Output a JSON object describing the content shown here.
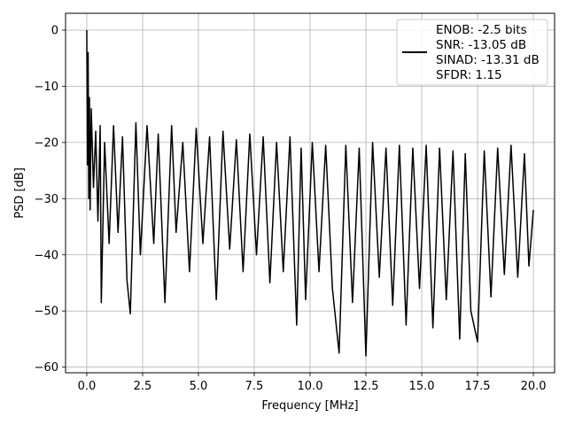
{
  "chart_data": {
    "type": "line",
    "xlabel": "Frequency [MHz]",
    "ylabel": "PSD [dB]",
    "xlim": [
      -0.95,
      20.95
    ],
    "ylim": [
      -61,
      3
    ],
    "xticks": [
      0.0,
      2.5,
      5.0,
      7.5,
      10.0,
      12.5,
      15.0,
      17.5,
      20.0
    ],
    "xtick_labels": [
      "0.0",
      "2.5",
      "5.0",
      "7.5",
      "10.0",
      "12.5",
      "15.0",
      "17.5",
      "20.0"
    ],
    "yticks": [
      0,
      -10,
      -20,
      -30,
      -40,
      -50,
      -60
    ],
    "ytick_labels": [
      "0",
      "−10",
      "−20",
      "−30",
      "−40",
      "−50",
      "−60"
    ],
    "grid": true,
    "line_color": "#000000",
    "legend": {
      "placement": "top-right",
      "entries": [
        "ENOB: -2.5 bits",
        "SNR: -13.05 dB",
        "SINAD: -13.31 dB",
        "SFDR: 1.15"
      ]
    },
    "series": [
      {
        "x": [
          0.0,
          0.03,
          0.06,
          0.09,
          0.12,
          0.15,
          0.2,
          0.3,
          0.4,
          0.5,
          0.6,
          0.65,
          0.8,
          1.0,
          1.2,
          1.4,
          1.6,
          1.8,
          1.95,
          2.2,
          2.4,
          2.7,
          3.0,
          3.2,
          3.5,
          3.8,
          4.0,
          4.3,
          4.6,
          4.9,
          5.2,
          5.5,
          5.8,
          6.1,
          6.4,
          6.7,
          7.0,
          7.3,
          7.6,
          7.9,
          8.2,
          8.5,
          8.8,
          9.1,
          9.4,
          9.6,
          9.8,
          10.1,
          10.4,
          10.7,
          11.0,
          11.3,
          11.6,
          11.9,
          12.2,
          12.5,
          12.8,
          13.1,
          13.4,
          13.7,
          14.0,
          14.3,
          14.6,
          14.9,
          15.2,
          15.5,
          15.8,
          16.1,
          16.4,
          16.7,
          16.95,
          17.2,
          17.5,
          17.8,
          18.1,
          18.4,
          18.7,
          19.0,
          19.3,
          19.6,
          19.8,
          20.0
        ],
        "y": [
          0.0,
          -24.0,
          -4.0,
          -30.0,
          -12.0,
          -32.0,
          -14.0,
          -28.0,
          -18.0,
          -34.0,
          -17.0,
          -48.5,
          -20.0,
          -38.0,
          -17.0,
          -36.0,
          -19.0,
          -44.5,
          -50.5,
          -16.5,
          -40.0,
          -17.0,
          -38.0,
          -18.5,
          -48.5,
          -17.0,
          -36.0,
          -20.0,
          -43.0,
          -17.5,
          -38.0,
          -19.0,
          -48.0,
          -18.0,
          -39.0,
          -19.5,
          -43.0,
          -18.5,
          -40.0,
          -19.0,
          -45.0,
          -20.0,
          -43.0,
          -19.0,
          -52.5,
          -21.0,
          -48.0,
          -20.0,
          -43.0,
          -20.5,
          -46.0,
          -57.5,
          -20.5,
          -48.5,
          -21.0,
          -58.0,
          -20.0,
          -44.0,
          -21.0,
          -49.0,
          -20.5,
          -52.5,
          -21.0,
          -46.0,
          -20.5,
          -53.0,
          -21.0,
          -48.0,
          -21.5,
          -55.0,
          -22.0,
          -50.0,
          -55.5,
          -21.5,
          -47.5,
          -21.0,
          -43.5,
          -20.5,
          -44.0,
          -22.0,
          -42.0,
          -32.0
        ]
      }
    ]
  }
}
